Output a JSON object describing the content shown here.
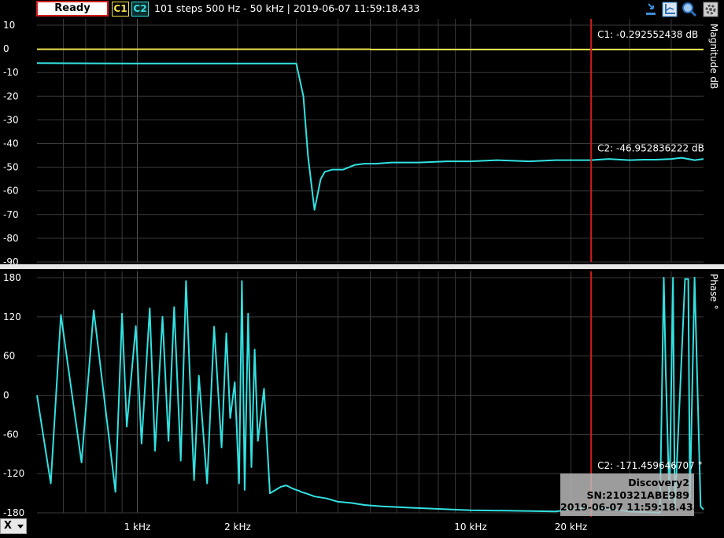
{
  "toolbar": {
    "status_button": "Ready",
    "channel1": "C1",
    "channel2": "C2",
    "sweep_info": "101 steps  500 Hz - 50 kHz | 2019-06-07 11:59:18.433",
    "icons": [
      "cursor-icon",
      "axis-icon",
      "zoom-icon",
      "settings-icon"
    ]
  },
  "axis_button": "X",
  "device_info": {
    "name": "Discovery2",
    "serial": "SN:210321ABE989",
    "timestamp": "2019-06-07 11:59:18.433"
  },
  "colors": {
    "c1": "#f2e24a",
    "c2": "#33e1e1",
    "cursor": "#d21c1c",
    "grid": "#3a3a3a",
    "background": "#000000"
  },
  "chart_data": [
    {
      "type": "line",
      "ylabel": "Magnitude dB",
      "xscale": "log",
      "xlim": [
        500,
        50000
      ],
      "ylim": [
        -90,
        10
      ],
      "yticks": [
        10,
        0,
        -10,
        -20,
        -30,
        -40,
        -50,
        -60,
        -70,
        -80,
        -90
      ],
      "grid": true,
      "cursor": {
        "x": 23000,
        "labels": [
          {
            "text": "C1: -0.292552438 dB",
            "y": 6
          },
          {
            "text": "C2: -46.952836222 dB",
            "y": -42
          }
        ]
      },
      "series": [
        {
          "name": "C1",
          "x": [
            500,
            5000,
            5010,
            50000
          ],
          "y": [
            -0.15,
            -0.15,
            -0.3,
            -0.3
          ]
        },
        {
          "name": "C2",
          "x": [
            500,
            1000,
            2000,
            3000,
            3150,
            3250,
            3400,
            3550,
            3650,
            3850,
            4150,
            4500,
            4800,
            5200,
            5800,
            7000,
            8500,
            10000,
            12000,
            15000,
            18000,
            20000,
            23000,
            26000,
            30000,
            33000,
            36000,
            40000,
            43000,
            47000,
            50000
          ],
          "y": [
            -6,
            -6.2,
            -6.2,
            -6.2,
            -20,
            -45,
            -68,
            -55,
            -52,
            -51,
            -51,
            -49,
            -48.5,
            -48.5,
            -48,
            -48,
            -47.5,
            -47.5,
            -47,
            -47.5,
            -47,
            -47,
            -47,
            -46.5,
            -47,
            -46.8,
            -46.8,
            -46.5,
            -46,
            -47,
            -46.5
          ]
        }
      ]
    },
    {
      "type": "line",
      "ylabel": "Phase °",
      "xscale": "log",
      "xlim": [
        500,
        50000
      ],
      "ylim": [
        -180,
        180
      ],
      "yticks": [
        180,
        120,
        60,
        0,
        -60,
        -120,
        -180
      ],
      "xticks": [
        {
          "value": 1000,
          "label": "1 kHz"
        },
        {
          "value": 2000,
          "label": "2 kHz"
        },
        {
          "value": 10000,
          "label": "10 kHz"
        },
        {
          "value": 20000,
          "label": "20 kHz"
        }
      ],
      "grid": true,
      "cursor": {
        "x": 23000,
        "labels": [
          {
            "text": "C2: -171.459646707 °",
            "y": -108
          }
        ]
      },
      "series": [
        {
          "name": "C2",
          "x": [
            500,
            550,
            590,
            680,
            740,
            860,
            900,
            930,
            990,
            1030,
            1090,
            1130,
            1190,
            1240,
            1290,
            1350,
            1400,
            1480,
            1530,
            1620,
            1700,
            1790,
            1850,
            1900,
            1960,
            2020,
            2060,
            2100,
            2150,
            2200,
            2250,
            2300,
            2400,
            2500,
            2600,
            2700,
            2800,
            2900,
            3000,
            3050,
            3100,
            3200,
            3400,
            3700,
            4000,
            4400,
            4800,
            5400,
            6500,
            8000,
            10000,
            14000,
            18000,
            23000,
            30000,
            37000,
            38000,
            38500,
            39500,
            40500,
            41000,
            44000,
            45000,
            45500,
            47000,
            49000,
            50000
          ],
          "y": [
            0,
            -135,
            123,
            -103,
            130,
            -148,
            125,
            -48,
            106,
            -74,
            133,
            -85,
            120,
            -70,
            135,
            -100,
            175,
            -130,
            30,
            -135,
            105,
            -80,
            95,
            -35,
            20,
            -135,
            175,
            -145,
            125,
            -110,
            70,
            -70,
            10,
            -150,
            -145,
            -140,
            -138,
            -142,
            -145,
            -146,
            -148,
            -150,
            -155,
            -158,
            -163,
            -165,
            -168,
            -170,
            -172,
            -174,
            -176,
            -177,
            -178,
            -171,
            -178,
            -180,
            180,
            40,
            -160,
            180,
            -175,
            178,
            178,
            -160,
            180,
            -170,
            -175
          ]
        }
      ]
    }
  ]
}
